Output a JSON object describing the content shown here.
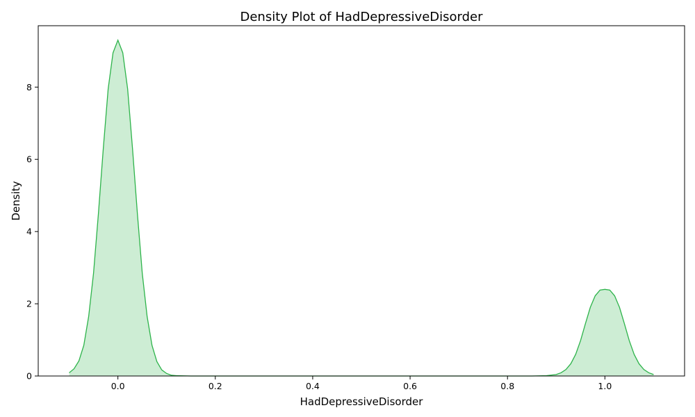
{
  "chart_data": {
    "type": "area",
    "title": "Density Plot of HadDepressiveDisorder",
    "xlabel": "HadDepressiveDisorder",
    "ylabel": "Density",
    "xlim": [
      -0.1636,
      1.1636
    ],
    "ylim": [
      0,
      9.7
    ],
    "xticks": [
      0.0,
      0.2,
      0.4,
      0.6,
      0.8,
      1.0
    ],
    "xtick_labels": [
      "0.0",
      "0.2",
      "0.4",
      "0.6",
      "0.8",
      "1.0"
    ],
    "yticks": [
      0,
      2,
      4,
      6,
      8
    ],
    "ytick_labels": [
      "0",
      "2",
      "4",
      "6",
      "8"
    ],
    "grid": false,
    "colors": {
      "line": "#2db34a",
      "fill": "#2db34a",
      "fill_opacity": 0.24
    },
    "series": [
      {
        "x": [
          -0.1,
          -0.09,
          -0.08,
          -0.07,
          -0.06,
          -0.05,
          -0.04,
          -0.03,
          -0.02,
          -0.01,
          0.0,
          0.01,
          0.02,
          0.03,
          0.04,
          0.05,
          0.06,
          0.07,
          0.08,
          0.09,
          0.1,
          0.11,
          0.12,
          0.15,
          0.2,
          0.3,
          0.4,
          0.5,
          0.6,
          0.7,
          0.8,
          0.85,
          0.88,
          0.9,
          0.91,
          0.92,
          0.93,
          0.94,
          0.95,
          0.96,
          0.97,
          0.98,
          0.99,
          1.0,
          1.01,
          1.02,
          1.03,
          1.04,
          1.05,
          1.06,
          1.07,
          1.08,
          1.09,
          1.1
        ],
        "y": [
          0.09,
          0.2,
          0.42,
          0.85,
          1.65,
          2.85,
          4.5,
          6.3,
          7.95,
          8.95,
          9.3,
          8.95,
          7.95,
          6.3,
          4.5,
          2.85,
          1.65,
          0.85,
          0.4,
          0.17,
          0.07,
          0.02,
          0.01,
          0.0,
          0.0,
          0.0,
          0.0,
          0.0,
          0.0,
          0.0,
          0.0,
          0.0,
          0.01,
          0.04,
          0.09,
          0.18,
          0.34,
          0.6,
          0.98,
          1.45,
          1.9,
          2.22,
          2.38,
          2.4,
          2.38,
          2.22,
          1.9,
          1.45,
          0.98,
          0.6,
          0.34,
          0.18,
          0.09,
          0.04
        ]
      }
    ]
  }
}
